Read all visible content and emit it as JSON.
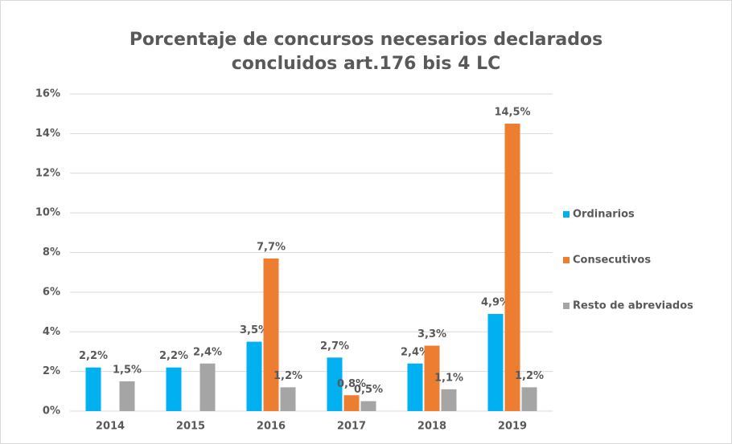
{
  "chart_data": {
    "type": "bar",
    "title": [
      "Porcentaje de concursos necesarios declarados",
      "concluidos art.176 bis 4 LC"
    ],
    "categories": [
      "2014",
      "2015",
      "2016",
      "2017",
      "2018",
      "2019"
    ],
    "series": [
      {
        "name": "Ordinarios",
        "color": "#00b0f0",
        "values": [
          2.2,
          2.2,
          3.5,
          2.7,
          2.4,
          4.9
        ],
        "value_labels": [
          "2,2%",
          "2,2%",
          "3,5%",
          "2,7%",
          "2,4%",
          "4,9%"
        ]
      },
      {
        "name": "Consecutivos",
        "color": "#ed7d31",
        "values": [
          null,
          null,
          7.7,
          0.8,
          3.3,
          14.5
        ],
        "value_labels": [
          null,
          null,
          "7,7%",
          "0,8%",
          "3,3%",
          "14,5%"
        ]
      },
      {
        "name": "Resto de abreviados",
        "color": "#a5a5a5",
        "values": [
          1.5,
          2.4,
          1.2,
          0.5,
          1.1,
          1.2
        ],
        "value_labels": [
          "1,5%",
          "2,4%",
          "1,2%",
          "0,5%",
          "1,1%",
          "1,2%"
        ]
      }
    ],
    "ylim": [
      0,
      16
    ],
    "yticks": [
      {
        "value": 0,
        "label": "0%"
      },
      {
        "value": 2,
        "label": "2%"
      },
      {
        "value": 4,
        "label": "4%"
      },
      {
        "value": 6,
        "label": "6%"
      },
      {
        "value": 8,
        "label": "8%"
      },
      {
        "value": 10,
        "label": "10%"
      },
      {
        "value": 12,
        "label": "12%"
      },
      {
        "value": 14,
        "label": "14%"
      },
      {
        "value": 16,
        "label": "16%"
      }
    ],
    "grid": true,
    "legend": "right"
  }
}
